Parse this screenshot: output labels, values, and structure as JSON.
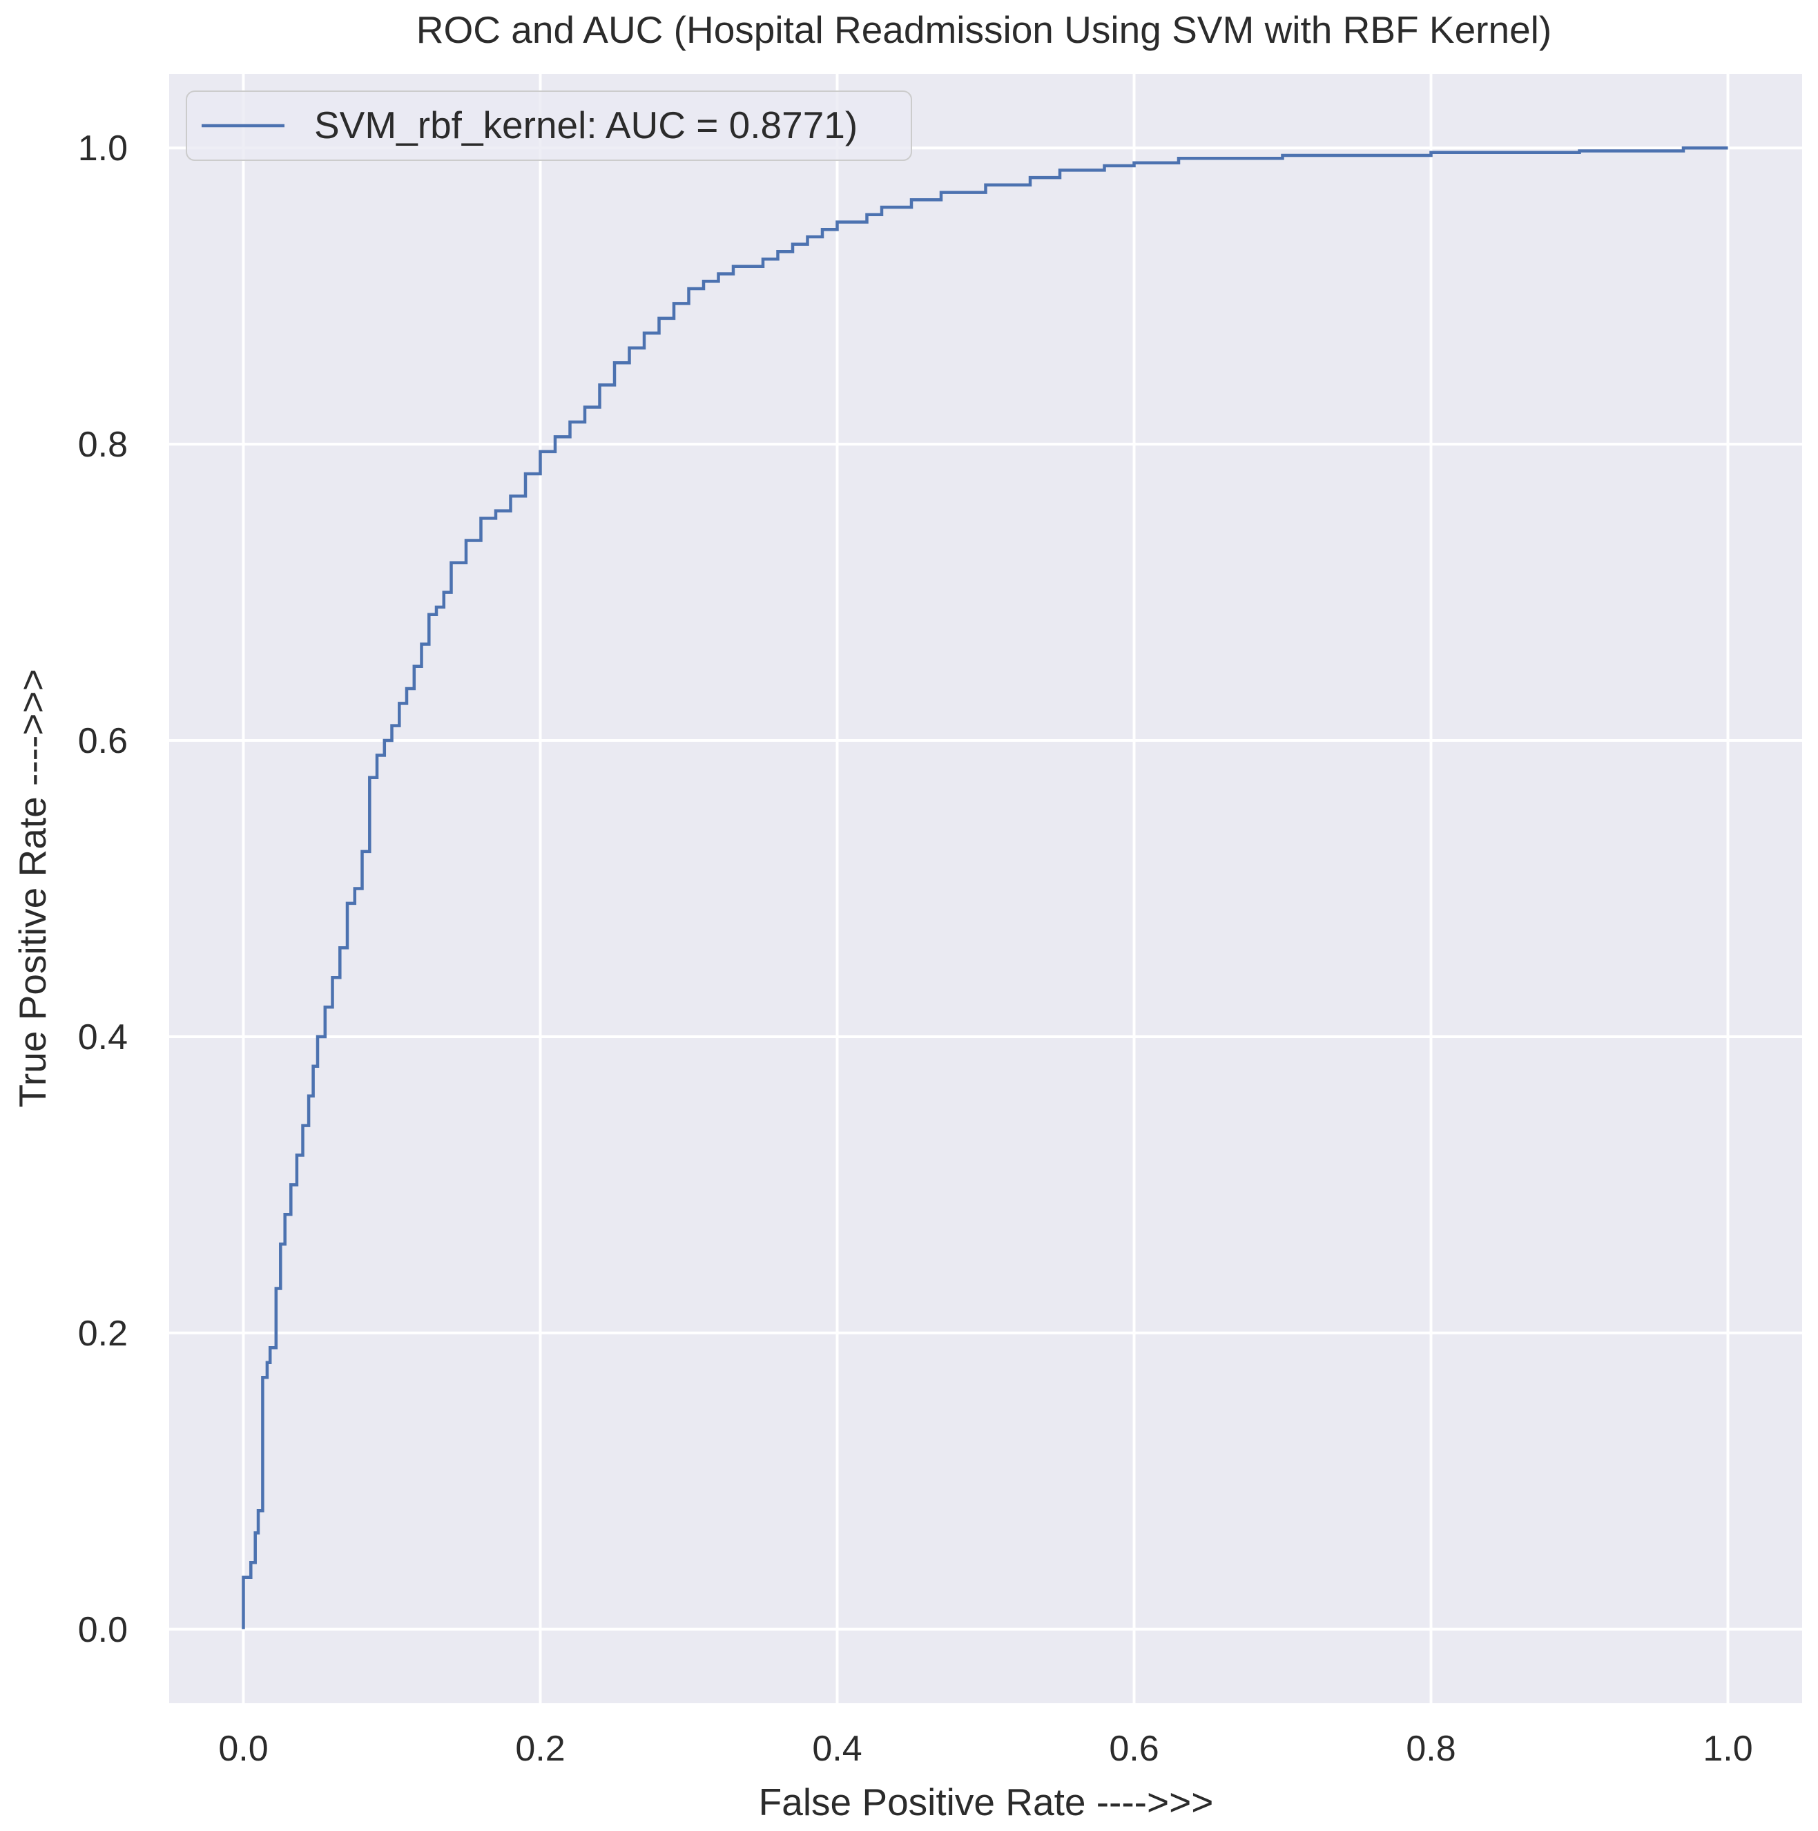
{
  "chart_data": {
    "type": "line",
    "title": "ROC and AUC (Hospital Readmission Using SVM with RBF Kernel)",
    "xlabel": "False Positive Rate ---->>>",
    "ylabel": "True Positive Rate ---->>>",
    "xlim": [
      -0.05,
      1.05
    ],
    "ylim": [
      -0.05,
      1.05
    ],
    "xticks": [
      0.0,
      0.2,
      0.4,
      0.6,
      0.8,
      1.0
    ],
    "yticks": [
      0.0,
      0.2,
      0.4,
      0.6,
      0.8,
      1.0
    ],
    "xtick_labels": [
      "0.0",
      "0.2",
      "0.4",
      "0.6",
      "0.8",
      "1.0"
    ],
    "ytick_labels": [
      "0.0",
      "0.2",
      "0.4",
      "0.6",
      "0.8",
      "1.0"
    ],
    "grid": true,
    "legend_position": "upper-left",
    "background_color": "#eaeaf2",
    "grid_color": "#ffffff",
    "series": [
      {
        "name": "SVM_rbf_kernel: AUC = 0.8771)",
        "color": "#4c72b0",
        "x": [
          0.0,
          0.0,
          0.005,
          0.005,
          0.008,
          0.008,
          0.01,
          0.01,
          0.013,
          0.013,
          0.016,
          0.016,
          0.018,
          0.018,
          0.022,
          0.022,
          0.025,
          0.025,
          0.028,
          0.028,
          0.032,
          0.032,
          0.036,
          0.036,
          0.04,
          0.04,
          0.044,
          0.044,
          0.047,
          0.047,
          0.05,
          0.05,
          0.055,
          0.055,
          0.06,
          0.06,
          0.065,
          0.065,
          0.07,
          0.07,
          0.075,
          0.075,
          0.08,
          0.08,
          0.085,
          0.085,
          0.09,
          0.09,
          0.095,
          0.095,
          0.1,
          0.1,
          0.105,
          0.105,
          0.11,
          0.11,
          0.115,
          0.115,
          0.12,
          0.12,
          0.125,
          0.125,
          0.13,
          0.13,
          0.135,
          0.135,
          0.14,
          0.14,
          0.15,
          0.15,
          0.16,
          0.16,
          0.17,
          0.17,
          0.18,
          0.18,
          0.19,
          0.19,
          0.2,
          0.2,
          0.21,
          0.21,
          0.22,
          0.22,
          0.23,
          0.23,
          0.24,
          0.24,
          0.25,
          0.25,
          0.26,
          0.26,
          0.27,
          0.27,
          0.28,
          0.28,
          0.29,
          0.29,
          0.3,
          0.3,
          0.31,
          0.31,
          0.32,
          0.32,
          0.33,
          0.33,
          0.35,
          0.35,
          0.36,
          0.36,
          0.37,
          0.37,
          0.38,
          0.38,
          0.39,
          0.39,
          0.4,
          0.4,
          0.42,
          0.42,
          0.43,
          0.43,
          0.45,
          0.45,
          0.47,
          0.47,
          0.5,
          0.5,
          0.53,
          0.53,
          0.55,
          0.55,
          0.58,
          0.58,
          0.6,
          0.6,
          0.63,
          0.63,
          0.7,
          0.7,
          0.8,
          0.8,
          0.9,
          0.9,
          0.97,
          0.97,
          1.0
        ],
        "y": [
          0.0,
          0.035,
          0.035,
          0.045,
          0.045,
          0.065,
          0.065,
          0.08,
          0.08,
          0.17,
          0.17,
          0.18,
          0.18,
          0.19,
          0.19,
          0.23,
          0.23,
          0.26,
          0.26,
          0.28,
          0.28,
          0.3,
          0.3,
          0.32,
          0.32,
          0.34,
          0.34,
          0.36,
          0.36,
          0.38,
          0.38,
          0.4,
          0.4,
          0.42,
          0.42,
          0.44,
          0.44,
          0.46,
          0.46,
          0.49,
          0.49,
          0.5,
          0.5,
          0.525,
          0.525,
          0.575,
          0.575,
          0.59,
          0.59,
          0.6,
          0.6,
          0.61,
          0.61,
          0.625,
          0.625,
          0.635,
          0.635,
          0.65,
          0.65,
          0.665,
          0.665,
          0.685,
          0.685,
          0.69,
          0.69,
          0.7,
          0.7,
          0.72,
          0.72,
          0.735,
          0.735,
          0.75,
          0.75,
          0.755,
          0.755,
          0.765,
          0.765,
          0.78,
          0.78,
          0.795,
          0.795,
          0.805,
          0.805,
          0.815,
          0.815,
          0.825,
          0.825,
          0.84,
          0.84,
          0.855,
          0.855,
          0.865,
          0.865,
          0.875,
          0.875,
          0.885,
          0.885,
          0.895,
          0.895,
          0.905,
          0.905,
          0.91,
          0.91,
          0.915,
          0.915,
          0.92,
          0.92,
          0.925,
          0.925,
          0.93,
          0.93,
          0.935,
          0.935,
          0.94,
          0.94,
          0.945,
          0.945,
          0.95,
          0.95,
          0.955,
          0.955,
          0.96,
          0.96,
          0.965,
          0.965,
          0.97,
          0.97,
          0.975,
          0.975,
          0.98,
          0.98,
          0.985,
          0.985,
          0.988,
          0.988,
          0.99,
          0.99,
          0.993,
          0.993,
          0.995,
          0.995,
          0.997,
          0.997,
          0.998,
          0.998,
          1.0,
          1.0
        ]
      }
    ]
  }
}
